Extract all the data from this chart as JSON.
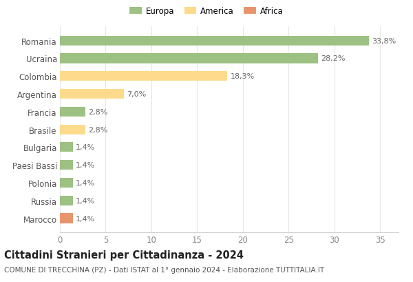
{
  "categories": [
    "Marocco",
    "Russia",
    "Polonia",
    "Paesi Bassi",
    "Bulgaria",
    "Brasile",
    "Francia",
    "Argentina",
    "Colombia",
    "Ucraina",
    "Romania"
  ],
  "values": [
    1.4,
    1.4,
    1.4,
    1.4,
    1.4,
    2.8,
    2.8,
    7.0,
    18.3,
    28.2,
    33.8
  ],
  "colors": [
    "#E8956D",
    "#9DC183",
    "#9DC183",
    "#9DC183",
    "#9DC183",
    "#FDDA8C",
    "#9DC183",
    "#FDDA8C",
    "#FDDA8C",
    "#9DC183",
    "#9DC183"
  ],
  "labels": [
    "1,4%",
    "1,4%",
    "1,4%",
    "1,4%",
    "1,4%",
    "2,8%",
    "2,8%",
    "7,0%",
    "18,3%",
    "28,2%",
    "33,8%"
  ],
  "legend_labels": [
    "Europa",
    "America",
    "Africa"
  ],
  "legend_colors": [
    "#9DC183",
    "#FDDA8C",
    "#E8956D"
  ],
  "title": "Cittadini Stranieri per Cittadinanza - 2024",
  "subtitle": "COMUNE DI TRECCHINA (PZ) - Dati ISTAT al 1° gennaio 2024 - Elaborazione TUTTITALIA.IT",
  "xlim": [
    0,
    37
  ],
  "xticks": [
    0,
    5,
    10,
    15,
    20,
    25,
    30,
    35
  ],
  "background_color": "#ffffff",
  "grid_color": "#e5e5e5",
  "bar_height": 0.55,
  "title_fontsize": 10.5,
  "subtitle_fontsize": 7.5,
  "label_fontsize": 8,
  "tick_fontsize": 8.5,
  "legend_fontsize": 8.5
}
